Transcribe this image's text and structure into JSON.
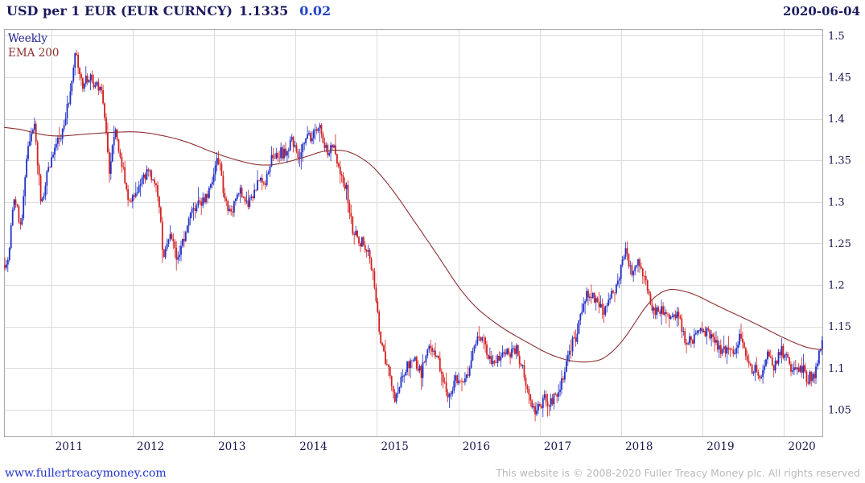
{
  "header": {
    "title": "USD per 1 EUR (EUR CURNCY)",
    "last_price": "1.1335",
    "change": "0.02",
    "date": "2020-06-04"
  },
  "legend": {
    "timeframe": "Weekly",
    "overlay": "EMA 200"
  },
  "footer": {
    "site": "www.fullertreacymoney.com",
    "copyright": "This website is © 2008-2020 Fuller Treacy Money plc. All rights reserved"
  },
  "chart_data": {
    "type": "candlestick",
    "title": "USD per 1 EUR (EUR CURNCY)",
    "timeframe": "Weekly",
    "overlay": "EMA 200",
    "last_price": 1.1335,
    "change": 0.02,
    "date": "2020-06-04",
    "grid": true,
    "x_range": [
      2010.42,
      2020.47
    ],
    "y_range": [
      1.018,
      1.508
    ],
    "y_ticks": [
      "1.5",
      "1.45",
      "1.4",
      "1.35",
      "1.3",
      "1.25",
      "1.2",
      "1.15",
      "1.1",
      "1.05"
    ],
    "x_ticks": [
      "2011",
      "2012",
      "2013",
      "2014",
      "2015",
      "2016",
      "2017",
      "2018",
      "2019",
      "2020"
    ],
    "colors": {
      "up": "#2130c8",
      "down": "#d42020",
      "ema": "#8a3032",
      "grid": "#dcdcdc",
      "border": "#a8a8a8",
      "title": "#1a1a5e",
      "change": "#2244cc",
      "axis_text": "#16164f",
      "link": "#2233cc",
      "copyright": "#b9b9b9"
    },
    "close_anchors": {
      "t0": 2010.46,
      "dt": 0.0833333,
      "values": [
        1.224,
        1.305,
        1.268,
        1.363,
        1.395,
        1.298,
        1.338,
        1.369,
        1.381,
        1.416,
        1.48,
        1.439,
        1.45,
        1.44,
        1.438,
        1.339,
        1.385,
        1.344,
        1.296,
        1.308,
        1.333,
        1.334,
        1.324,
        1.236,
        1.266,
        1.23,
        1.257,
        1.286,
        1.296,
        1.299,
        1.319,
        1.358,
        1.306,
        1.282,
        1.317,
        1.3,
        1.301,
        1.33,
        1.322,
        1.353,
        1.358,
        1.359,
        1.375,
        1.349,
        1.38,
        1.377,
        1.387,
        1.363,
        1.369,
        1.339,
        1.313,
        1.263,
        1.253,
        1.245,
        1.21,
        1.129,
        1.105,
        1.062,
        1.088,
        1.105,
        1.11,
        1.095,
        1.125,
        1.118,
        1.095,
        1.062,
        1.088,
        1.083,
        1.093,
        1.132,
        1.14,
        1.113,
        1.111,
        1.117,
        1.116,
        1.124,
        1.098,
        1.059,
        1.046,
        1.065,
        1.058,
        1.068,
        1.09,
        1.124,
        1.143,
        1.184,
        1.191,
        1.181,
        1.165,
        1.19,
        1.201,
        1.242,
        1.219,
        1.232,
        1.208,
        1.169,
        1.168,
        1.169,
        1.16,
        1.16,
        1.131,
        1.132,
        1.147,
        1.145,
        1.137,
        1.122,
        1.122,
        1.117,
        1.137,
        1.108,
        1.099,
        1.09,
        1.115,
        1.102,
        1.121,
        1.109,
        1.095,
        1.1,
        1.088,
        1.092,
        1.1335
      ]
    },
    "ema_anchors": [
      [
        2010.42,
        1.392
      ],
      [
        2011.0,
        1.378
      ],
      [
        2011.6,
        1.383
      ],
      [
        2012.1,
        1.385
      ],
      [
        2012.6,
        1.375
      ],
      [
        2013.1,
        1.355
      ],
      [
        2013.6,
        1.342
      ],
      [
        2014.0,
        1.35
      ],
      [
        2014.45,
        1.365
      ],
      [
        2014.8,
        1.357
      ],
      [
        2015.1,
        1.328
      ],
      [
        2015.45,
        1.278
      ],
      [
        2015.8,
        1.228
      ],
      [
        2016.1,
        1.182
      ],
      [
        2016.5,
        1.15
      ],
      [
        2016.9,
        1.128
      ],
      [
        2017.2,
        1.112
      ],
      [
        2017.6,
        1.105
      ],
      [
        2017.9,
        1.115
      ],
      [
        2018.15,
        1.152
      ],
      [
        2018.45,
        1.196
      ],
      [
        2018.8,
        1.194
      ],
      [
        2019.2,
        1.174
      ],
      [
        2019.6,
        1.156
      ],
      [
        2020.0,
        1.136
      ],
      [
        2020.2,
        1.127
      ],
      [
        2020.47,
        1.119
      ]
    ]
  }
}
